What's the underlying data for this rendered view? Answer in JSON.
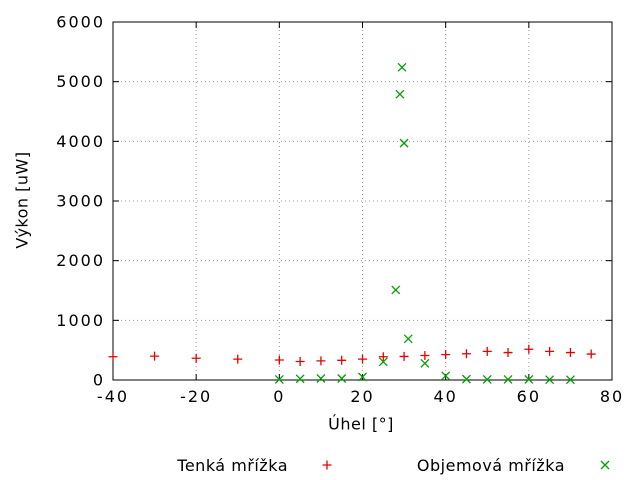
{
  "chart_data": {
    "type": "scatter",
    "title": "",
    "xlabel": "Úhel [°]",
    "ylabel": "Výkon [uW]",
    "xlim": [
      -40,
      80
    ],
    "ylim": [
      0,
      6000
    ],
    "xticks": [
      -40,
      -20,
      0,
      20,
      40,
      60,
      80
    ],
    "yticks": [
      0,
      1000,
      2000,
      3000,
      4000,
      5000,
      6000
    ],
    "grid": true,
    "grid_style": "dotted",
    "grid_color": "#9a9a9a",
    "border_color": "#000000",
    "legend_position": "bottom-outside",
    "series": [
      {
        "name": "Tenká mřížka",
        "marker": "plus",
        "color": "#e60000",
        "points": [
          [
            -40,
            390
          ],
          [
            -30,
            400
          ],
          [
            -20,
            365
          ],
          [
            -10,
            350
          ],
          [
            0,
            335
          ],
          [
            5,
            310
          ],
          [
            10,
            320
          ],
          [
            15,
            330
          ],
          [
            20,
            350
          ],
          [
            25,
            390
          ],
          [
            30,
            395
          ],
          [
            35,
            410
          ],
          [
            40,
            425
          ],
          [
            45,
            440
          ],
          [
            50,
            480
          ],
          [
            55,
            460
          ],
          [
            60,
            515
          ],
          [
            65,
            480
          ],
          [
            70,
            460
          ],
          [
            75,
            435
          ]
        ]
      },
      {
        "name": "Objemová mřížka",
        "marker": "cross",
        "color": "#00a000",
        "points": [
          [
            0,
            10
          ],
          [
            5,
            20
          ],
          [
            10,
            25
          ],
          [
            15,
            25
          ],
          [
            20,
            50
          ],
          [
            25,
            305
          ],
          [
            28,
            1510
          ],
          [
            29,
            4790
          ],
          [
            29.5,
            5240
          ],
          [
            30,
            3970
          ],
          [
            31,
            690
          ],
          [
            35,
            280
          ],
          [
            40,
            70
          ],
          [
            45,
            15
          ],
          [
            50,
            10
          ],
          [
            55,
            10
          ],
          [
            60,
            10
          ],
          [
            65,
            5
          ],
          [
            70,
            5
          ]
        ]
      }
    ]
  }
}
